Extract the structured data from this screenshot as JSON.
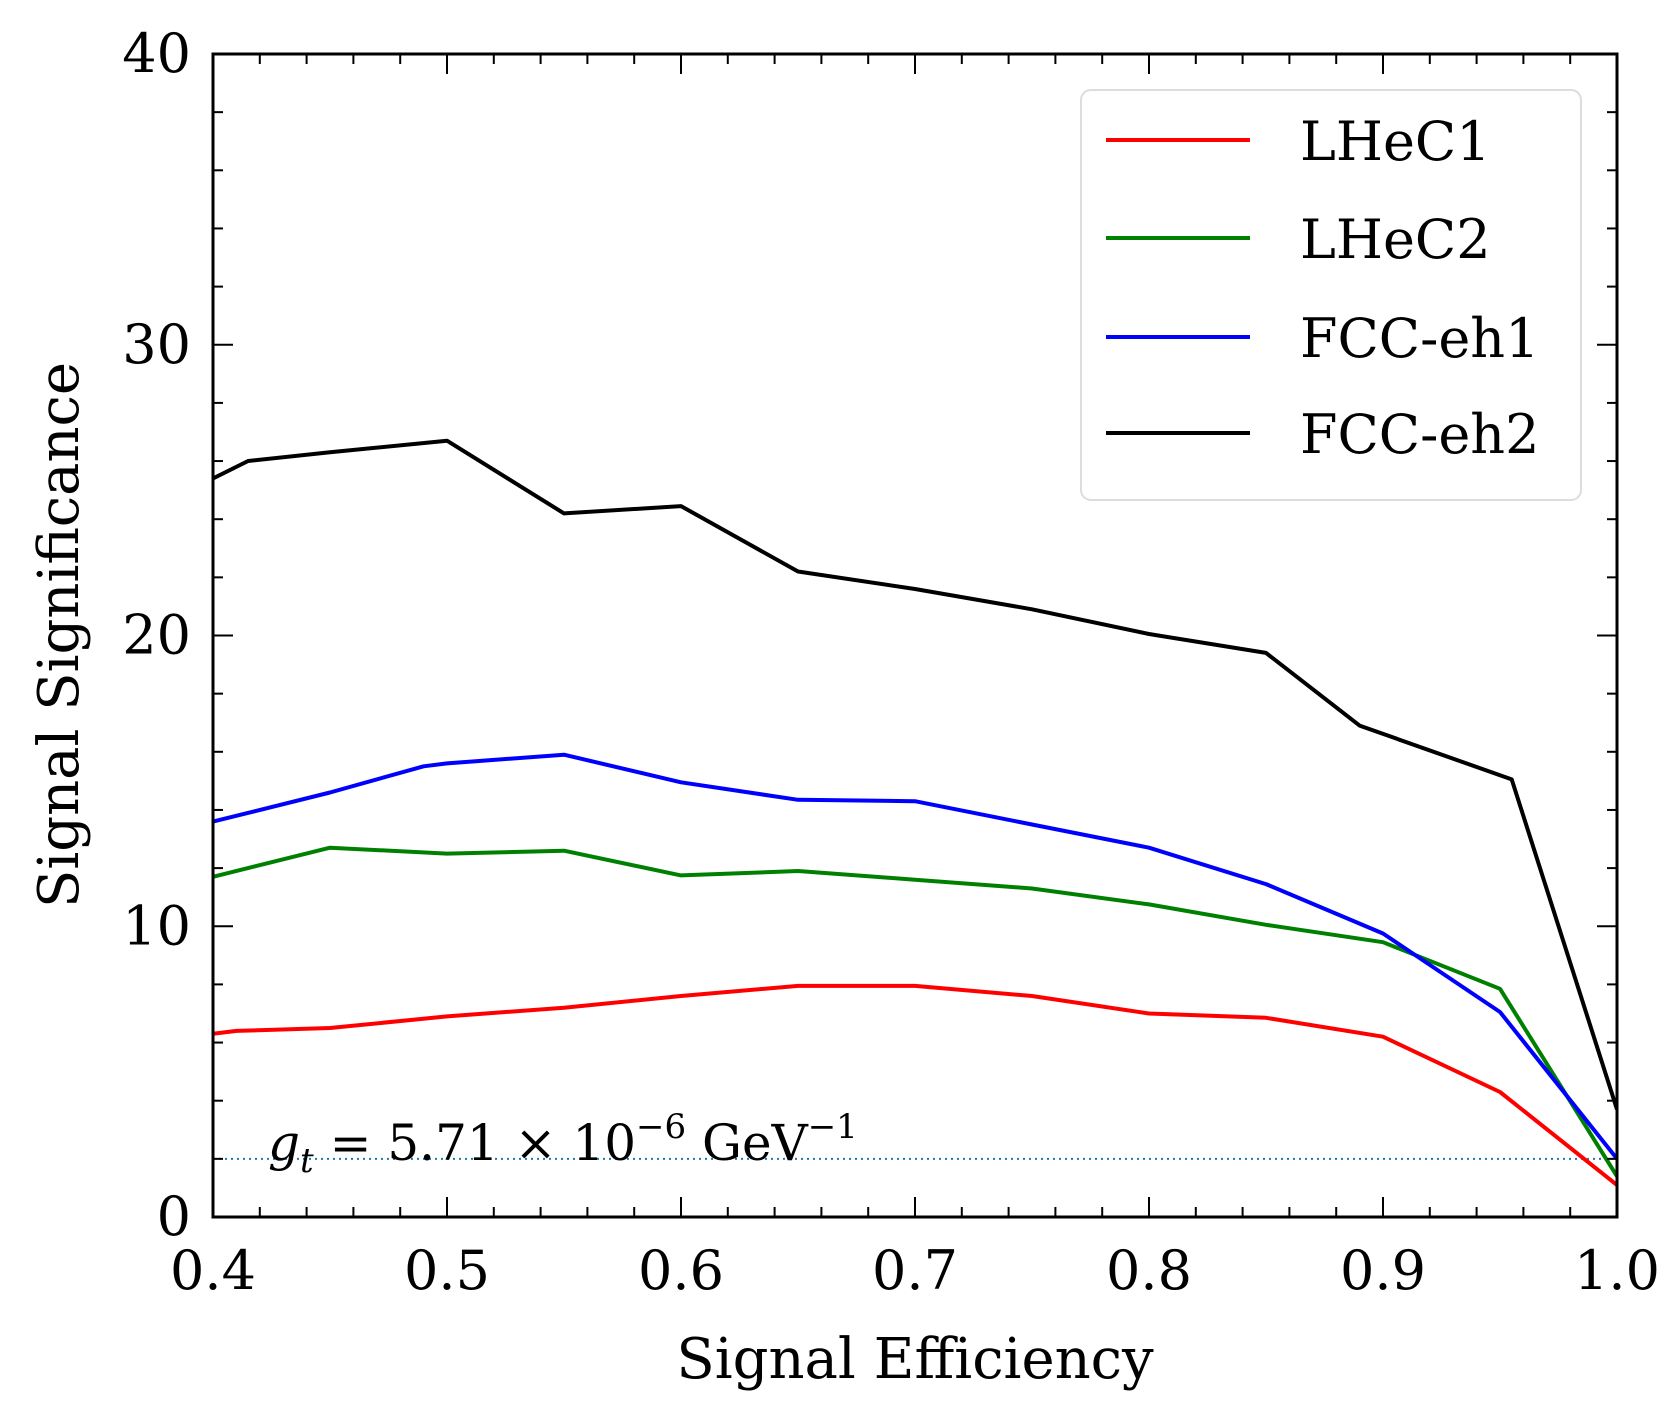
{
  "chart_data": {
    "type": "line",
    "title": "",
    "xlabel": "Signal Efficiency",
    "ylabel": "Signal Significance",
    "xlim": [
      0.4,
      1.0
    ],
    "ylim": [
      0,
      40
    ],
    "xticks": [
      0.4,
      0.5,
      0.6,
      0.7,
      0.8,
      0.9,
      1.0
    ],
    "xtick_labels": [
      "0.4",
      "0.5",
      "0.6",
      "0.7",
      "0.8",
      "0.9",
      "1.0"
    ],
    "yticks": [
      0,
      10,
      20,
      30,
      40
    ],
    "ytick_labels": [
      "0",
      "10",
      "20",
      "30",
      "40"
    ],
    "grid": false,
    "legend_position": "top-right",
    "series": [
      {
        "name": "LHeC1",
        "color": "#ff0000",
        "x": [
          0.4,
          0.41,
          0.45,
          0.5,
          0.55,
          0.6,
          0.65,
          0.7,
          0.75,
          0.8,
          0.85,
          0.9,
          0.95,
          1.0
        ],
        "y": [
          6.3,
          6.4,
          6.5,
          6.9,
          7.2,
          7.6,
          7.95,
          7.95,
          7.6,
          7.0,
          6.85,
          6.2,
          4.3,
          1.1
        ]
      },
      {
        "name": "LHeC2",
        "color": "#008000",
        "x": [
          0.4,
          0.45,
          0.5,
          0.55,
          0.6,
          0.65,
          0.7,
          0.75,
          0.8,
          0.85,
          0.9,
          0.95,
          1.0
        ],
        "y": [
          11.7,
          12.7,
          12.5,
          12.6,
          11.75,
          11.9,
          11.6,
          11.3,
          10.75,
          10.05,
          9.45,
          7.85,
          1.4
        ]
      },
      {
        "name": "FCC-eh1",
        "color": "#0000ff",
        "x": [
          0.4,
          0.45,
          0.49,
          0.5,
          0.55,
          0.6,
          0.65,
          0.7,
          0.75,
          0.8,
          0.85,
          0.9,
          0.95,
          1.0
        ],
        "y": [
          13.6,
          14.6,
          15.5,
          15.6,
          15.9,
          14.95,
          14.35,
          14.3,
          13.5,
          12.7,
          11.45,
          9.75,
          7.05,
          2.0
        ]
      },
      {
        "name": "FCC-eh2",
        "color": "#000000",
        "x": [
          0.4,
          0.415,
          0.45,
          0.5,
          0.55,
          0.6,
          0.65,
          0.7,
          0.75,
          0.8,
          0.85,
          0.89,
          0.955,
          1.0
        ],
        "y": [
          25.4,
          26.0,
          26.3,
          26.7,
          24.2,
          24.45,
          22.2,
          21.6,
          20.9,
          20.05,
          19.4,
          16.9,
          15.05,
          3.7
        ]
      }
    ],
    "reference_line": {
      "y": 2.0,
      "color": "#1f77b4",
      "style": "dotted"
    },
    "annotation": {
      "symbol": "g",
      "subscript": "t",
      "text": " = 5.71 × 10",
      "exponent": "−6",
      "unit": " GeV",
      "unit_exponent": "−1"
    }
  }
}
